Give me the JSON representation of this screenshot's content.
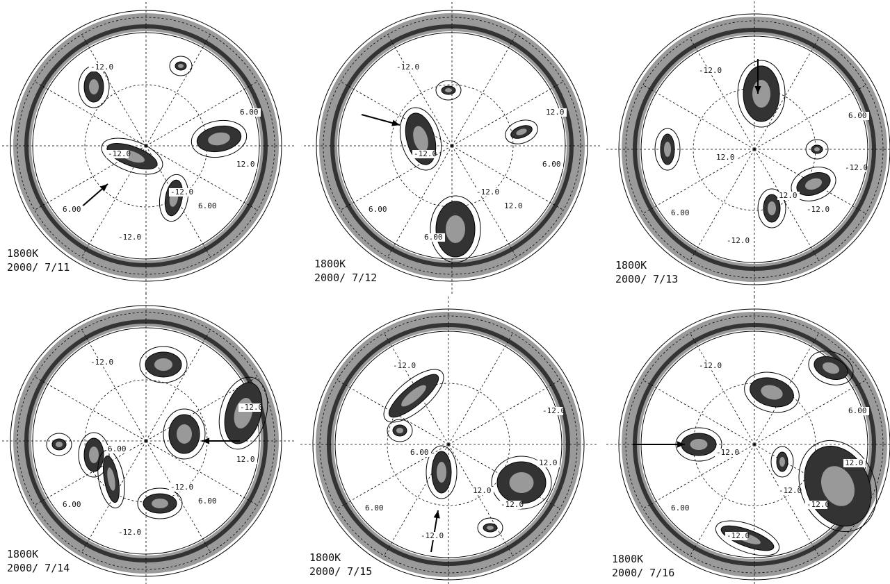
{
  "panels": [
    {
      "level": "1800K",
      "date": "2000/ 7/11",
      "contour_labels": [
        "-12.0",
        "6.00",
        "-12.0",
        "12.0",
        "-12.0",
        "6.00",
        "-12.0",
        "6.00"
      ]
    },
    {
      "level": "1800K",
      "date": "2000/ 7/12",
      "contour_labels": [
        "-12.0",
        "12.0",
        "-12.0",
        "6.00",
        "-12.0",
        "12.0",
        "6.00",
        "6.00"
      ]
    },
    {
      "level": "1800K",
      "date": "2000/ 7/13",
      "contour_labels": [
        "-12.0",
        "6.00",
        "12.0",
        "-12.0",
        "12.0",
        "-12.0",
        "-12.0",
        "6.00"
      ]
    },
    {
      "level": "1800K",
      "date": "2000/ 7/14",
      "contour_labels": [
        "-12.0",
        "-12.0",
        "6.00",
        "12.0",
        "-12.0",
        "6.00",
        "-12.0",
        "6.00"
      ]
    },
    {
      "level": "1800K",
      "date": "2000/ 7/15",
      "contour_labels": [
        "-12.0",
        "-12.0",
        "6.00",
        "12.0",
        "12.0",
        "-12.0",
        "-12.0",
        "6.00"
      ]
    },
    {
      "level": "1800K",
      "date": "2000/ 7/16",
      "contour_labels": [
        "-12.0",
        "6.00",
        "-12.0",
        "12.0",
        "-12.0",
        "-12.0",
        "-12.0",
        "6.00"
      ]
    }
  ]
}
